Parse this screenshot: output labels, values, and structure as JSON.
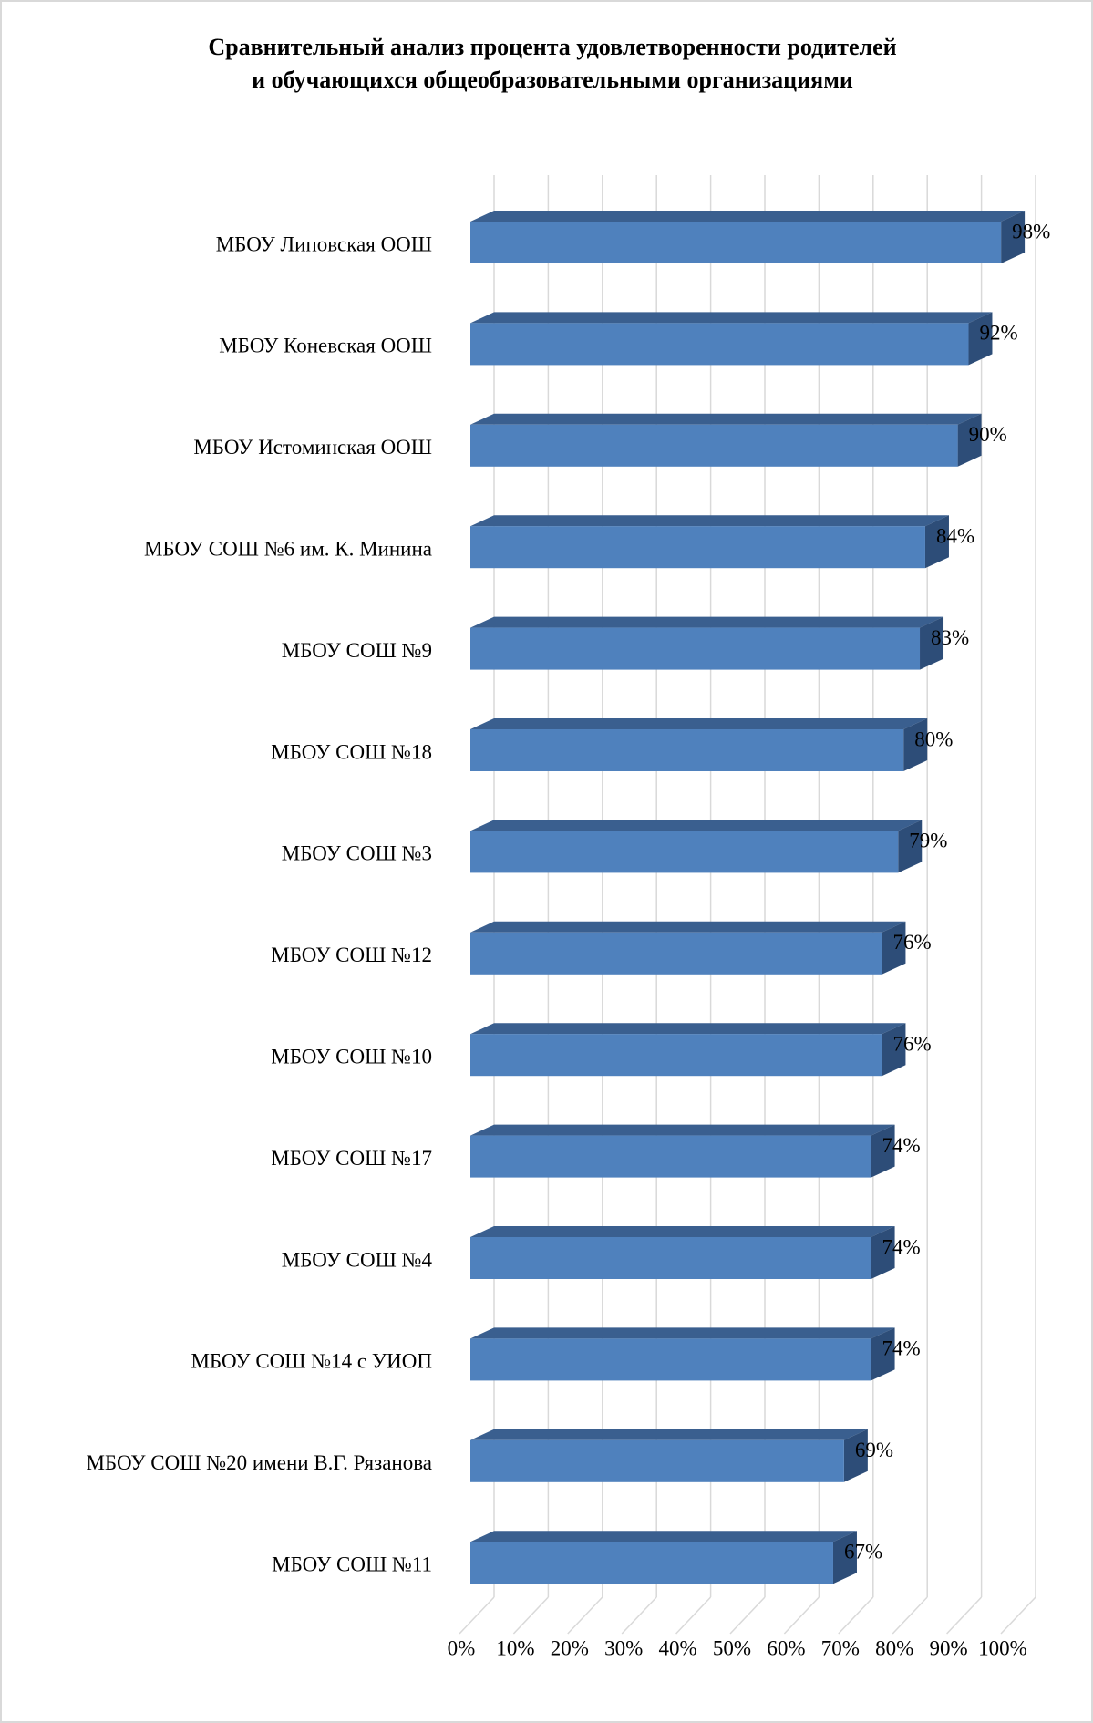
{
  "chart_data": {
    "type": "bar3d_horizontal",
    "title": [
      "Сравнительный  анализ  процента  удовлетворенности  родителей",
      "и обучающихся общеобразовательными  организациями"
    ],
    "categories": [
      "МБОУ Липовская ООШ",
      "МБОУ Коневская ООШ",
      "МБОУ Истоминская ООШ",
      "МБОУ СОШ №6 им. К. Минина",
      "МБОУ СОШ №9",
      "МБОУ СОШ №18",
      "МБОУ СОШ №3",
      "МБОУ СОШ №12",
      "МБОУ СОШ №10",
      "МБОУ СОШ №17",
      "МБОУ СОШ №4",
      "МБОУ СОШ №14 с УИОП",
      "МБОУ СОШ №20 имени В.Г. Рязанова",
      "МБОУ СОШ №11"
    ],
    "values": [
      98,
      92,
      90,
      84,
      83,
      80,
      79,
      76,
      76,
      74,
      74,
      74,
      69,
      67
    ],
    "value_labels": [
      "98%",
      "92%",
      "90%",
      "84%",
      "83%",
      "80%",
      "79%",
      "76%",
      "76%",
      "74%",
      "74%",
      "74%",
      "69%",
      "67%"
    ],
    "color": "#4f81bd",
    "xlim": [
      0,
      100
    ],
    "xticks": [
      {
        "value": 0,
        "label": "0%"
      },
      {
        "value": 10,
        "label": "10%"
      },
      {
        "value": 20,
        "label": "20%"
      },
      {
        "value": 30,
        "label": "30%"
      },
      {
        "value": 40,
        "label": "40%"
      },
      {
        "value": 50,
        "label": "50%"
      },
      {
        "value": 60,
        "label": "60%"
      },
      {
        "value": 70,
        "label": "70%"
      },
      {
        "value": 80,
        "label": "80%"
      },
      {
        "value": 90,
        "label": "90%"
      },
      {
        "value": 100,
        "label": "100%"
      }
    ],
    "grid": true
  }
}
